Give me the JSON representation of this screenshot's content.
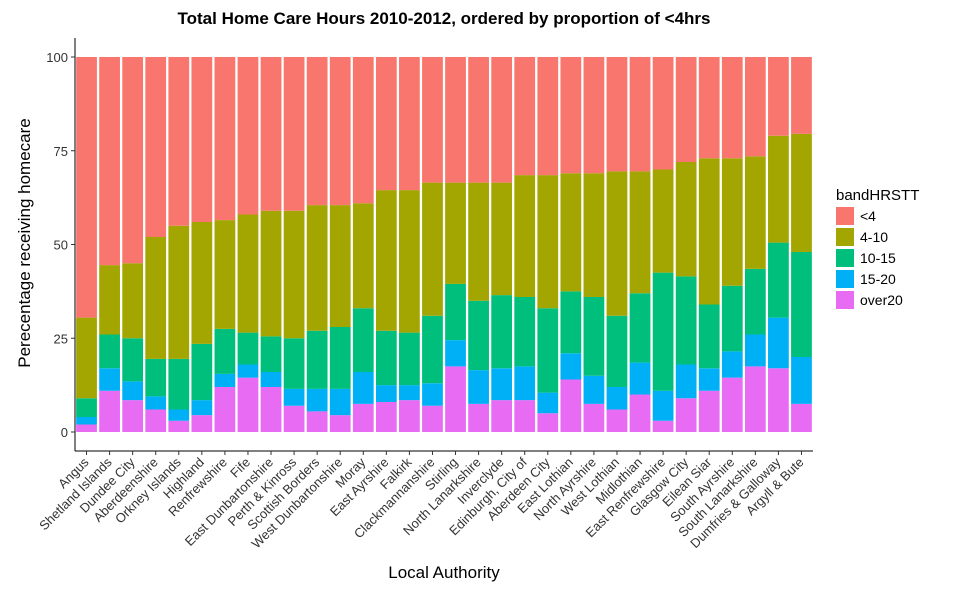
{
  "chart_data": {
    "type": "bar",
    "stacked": true,
    "title": "Total Home Care Hours 2010-2012, ordered by proportion of <4hrs",
    "xlabel": "Local Authority",
    "ylabel": "Perecentage receiving homecare",
    "ylim": [
      0,
      100
    ],
    "yticks": [
      0,
      25,
      50,
      75,
      100
    ],
    "grid": false,
    "legend": {
      "title": "bandHRSTT",
      "position": "right",
      "entries": [
        "<4",
        "4-10",
        "10-15",
        "15-20",
        "over20"
      ]
    },
    "colors": {
      "<4": "#F8766D",
      "4-10": "#A3A500",
      "10-15": "#00BF7D",
      "15-20": "#00B0F6",
      "over20": "#E76BF3"
    },
    "categories": [
      "Angus",
      "Shetland Islands",
      "Dundee City",
      "Aberdeenshire",
      "Orkney Islands",
      "Highland",
      "Renfrewshire",
      "Fife",
      "East Dunbartonshire",
      "Perth & Kinross",
      "Scottish Borders",
      "West Dunbartonshire",
      "Moray",
      "East Ayrshire",
      "Falkirk",
      "Clackmannanshire",
      "Stirling",
      "North Lanarkshire",
      "Inverclyde",
      "Edinburgh, City of",
      "Aberdeen City",
      "East Lothian",
      "North Ayrshire",
      "West Lothian",
      "Midlothian",
      "East Renfrewshire",
      "Glasgow City",
      "Eilean Siar",
      "South Ayrshire",
      "South Lanarkshire",
      "Dumfries & Galloway",
      "Argyll & Bute"
    ],
    "series": [
      {
        "name": "over20",
        "values": [
          2,
          11,
          8.5,
          6,
          3,
          4.5,
          12,
          14.5,
          12,
          7,
          5.5,
          4.5,
          7.5,
          8,
          8.5,
          7,
          17.5,
          7.5,
          8.5,
          8.5,
          5,
          14,
          7.5,
          6,
          10,
          3,
          9,
          11,
          14.5,
          17.5,
          17,
          7.5
        ]
      },
      {
        "name": "15-20",
        "values": [
          2,
          6,
          5,
          3.5,
          3,
          4,
          3.5,
          3.5,
          4,
          4.5,
          6,
          7,
          8.5,
          4.5,
          4,
          6,
          7,
          9,
          8.5,
          9,
          5.5,
          7,
          7.5,
          6,
          8.5,
          8,
          9,
          6,
          7,
          8.5,
          13.5,
          12.5
        ]
      },
      {
        "name": "10-15",
        "values": [
          5,
          9,
          11.5,
          10,
          13.5,
          15,
          12,
          8.5,
          9.5,
          13.5,
          15.5,
          16.5,
          17,
          14.5,
          14,
          18,
          15,
          18.5,
          19.5,
          18.5,
          22.5,
          16.5,
          21,
          19,
          18.5,
          31.5,
          23.5,
          17,
          17.5,
          17.5,
          20,
          28
        ]
      },
      {
        "name": "4-10",
        "values": [
          21.5,
          18.5,
          20,
          32.5,
          35.5,
          32.5,
          29,
          31.5,
          33.5,
          34,
          33.5,
          32.5,
          28,
          37.5,
          38,
          35.5,
          27,
          31.5,
          30,
          32.5,
          35.5,
          31.5,
          33,
          38.5,
          32.5,
          27.5,
          30.5,
          39,
          34,
          30,
          28.5,
          31.5
        ]
      },
      {
        "name": "<4",
        "values": [
          69.5,
          55.5,
          55,
          48,
          45,
          44,
          43.5,
          42,
          41,
          41,
          39.5,
          39.5,
          39,
          35.5,
          35.5,
          33.5,
          33.5,
          33.5,
          33.5,
          31.5,
          31.5,
          31,
          31,
          30.5,
          30.5,
          30,
          28,
          27,
          27,
          26.5,
          21,
          20.5
        ]
      }
    ]
  }
}
